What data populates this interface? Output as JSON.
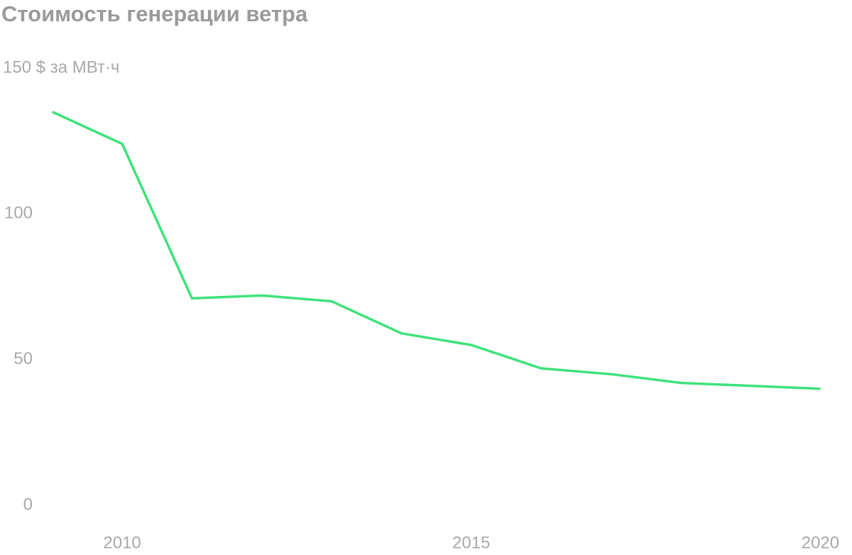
{
  "chart_data": {
    "type": "line",
    "title": "Стоимость генерации ветра",
    "x": [
      2009,
      2010,
      2011,
      2012,
      2013,
      2014,
      2015,
      2016,
      2017,
      2018,
      2019,
      2020
    ],
    "series": [
      {
        "color": "#3ee27b",
        "values": [
          135,
          124,
          71,
          72,
          70,
          59,
          55,
          47,
          45,
          42,
          41,
          40
        ]
      }
    ],
    "xlim": [
      2008.25,
      2020.25
    ],
    "xticks": [
      2010,
      2015,
      2020
    ],
    "ylim": [
      0,
      150
    ],
    "yticks": [
      0,
      50,
      100,
      {
        "value": 150,
        "label": "150 $ за МВт·ч"
      }
    ],
    "grid": false
  }
}
